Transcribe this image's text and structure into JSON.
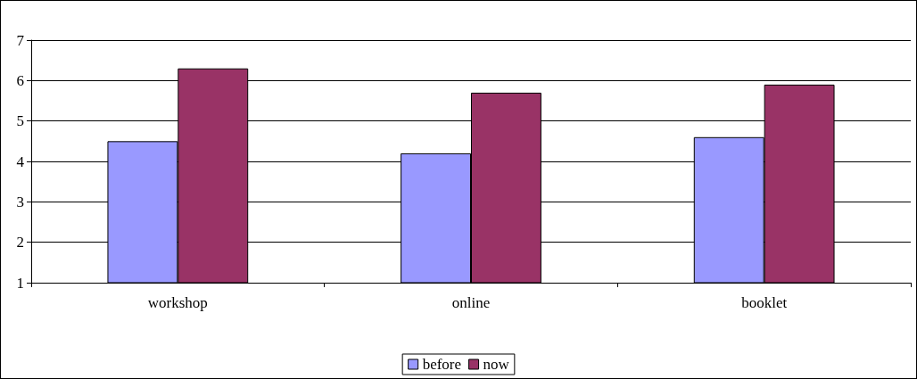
{
  "chart_data": {
    "type": "bar",
    "categories": [
      "workshop",
      "online",
      "booklet"
    ],
    "series": [
      {
        "name": "before",
        "color": "#9999ff",
        "values": [
          4.5,
          4.2,
          4.6
        ]
      },
      {
        "name": "now",
        "color": "#993366",
        "values": [
          6.3,
          5.7,
          5.9
        ]
      }
    ],
    "ylim": [
      1,
      7
    ],
    "yticks": [
      1,
      2,
      3,
      4,
      5,
      6,
      7
    ],
    "grid": "y",
    "legend": "bottom"
  }
}
